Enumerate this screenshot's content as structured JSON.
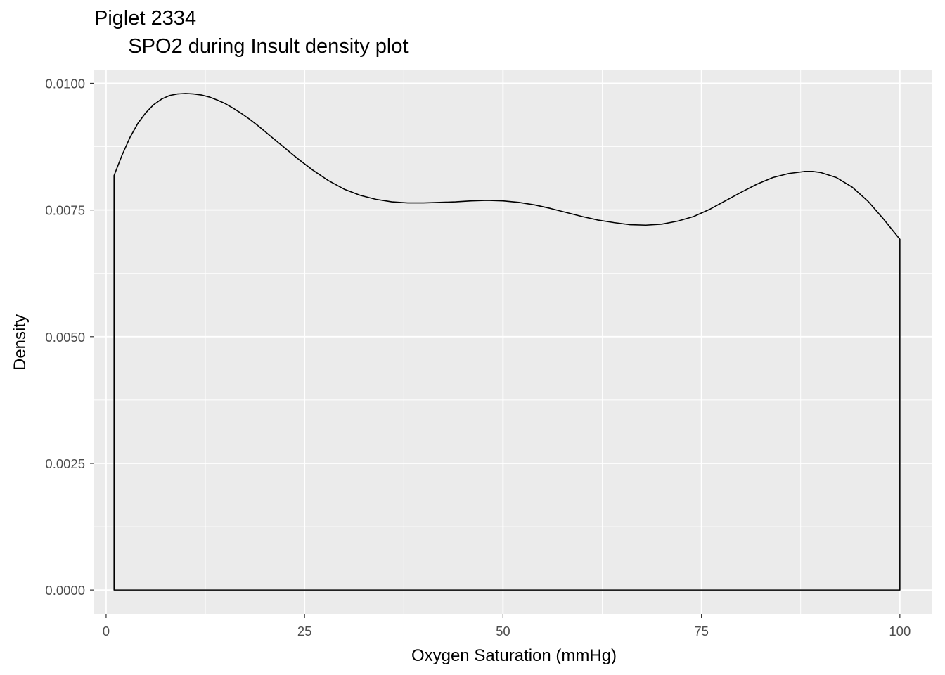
{
  "chart_data": {
    "type": "area",
    "title": "Piglet 2334",
    "subtitle": "      SPO2 during Insult density plot",
    "xlabel": "Oxygen Saturation (mmHg)",
    "ylabel": "Density",
    "xlim": [
      -1.5,
      104
    ],
    "ylim": [
      -0.00047,
      0.01027
    ],
    "x_ticks": [
      0,
      25,
      50,
      75,
      100
    ],
    "x_tick_labels": [
      "0",
      "25",
      "50",
      "75",
      "100"
    ],
    "y_ticks": [
      0,
      0.0025,
      0.005,
      0.0075,
      0.01
    ],
    "y_tick_labels": [
      "0.0000",
      "0.0025",
      "0.0050",
      "0.0075",
      "0.0100"
    ],
    "grid": true,
    "fill": "none",
    "line_color": "#000000",
    "panel_background": "#ebebeb",
    "grid_color": "#ffffff",
    "series": [
      {
        "x": [
          1,
          2,
          3,
          4,
          5,
          6,
          7,
          8,
          9,
          10,
          11,
          12,
          13,
          14,
          15,
          16,
          17,
          18,
          19,
          20,
          22,
          24,
          26,
          28,
          30,
          32,
          34,
          36,
          38,
          40,
          42,
          44,
          46,
          48,
          50,
          52,
          54,
          56,
          58,
          60,
          62,
          64,
          66,
          68,
          70,
          72,
          74,
          76,
          78,
          80,
          82,
          84,
          86,
          88,
          89,
          90,
          92,
          94,
          96,
          98,
          100
        ],
        "y": [
          0.00818,
          0.00858,
          0.00893,
          0.00921,
          0.00942,
          0.00958,
          0.00969,
          0.00976,
          0.00979,
          0.0098,
          0.00979,
          0.00977,
          0.00973,
          0.00967,
          0.0096,
          0.00951,
          0.00941,
          0.0093,
          0.00918,
          0.00905,
          0.00879,
          0.00853,
          0.00829,
          0.00808,
          0.00791,
          0.00779,
          0.00771,
          0.00766,
          0.00764,
          0.00764,
          0.00765,
          0.00766,
          0.00768,
          0.00769,
          0.00768,
          0.00765,
          0.0076,
          0.00753,
          0.00745,
          0.00737,
          0.0073,
          0.00725,
          0.00721,
          0.0072,
          0.00722,
          0.00728,
          0.00737,
          0.00751,
          0.00768,
          0.00785,
          0.00801,
          0.00814,
          0.00822,
          0.00826,
          0.00826,
          0.00824,
          0.00814,
          0.00795,
          0.00767,
          0.00731,
          0.00692
        ]
      }
    ]
  }
}
